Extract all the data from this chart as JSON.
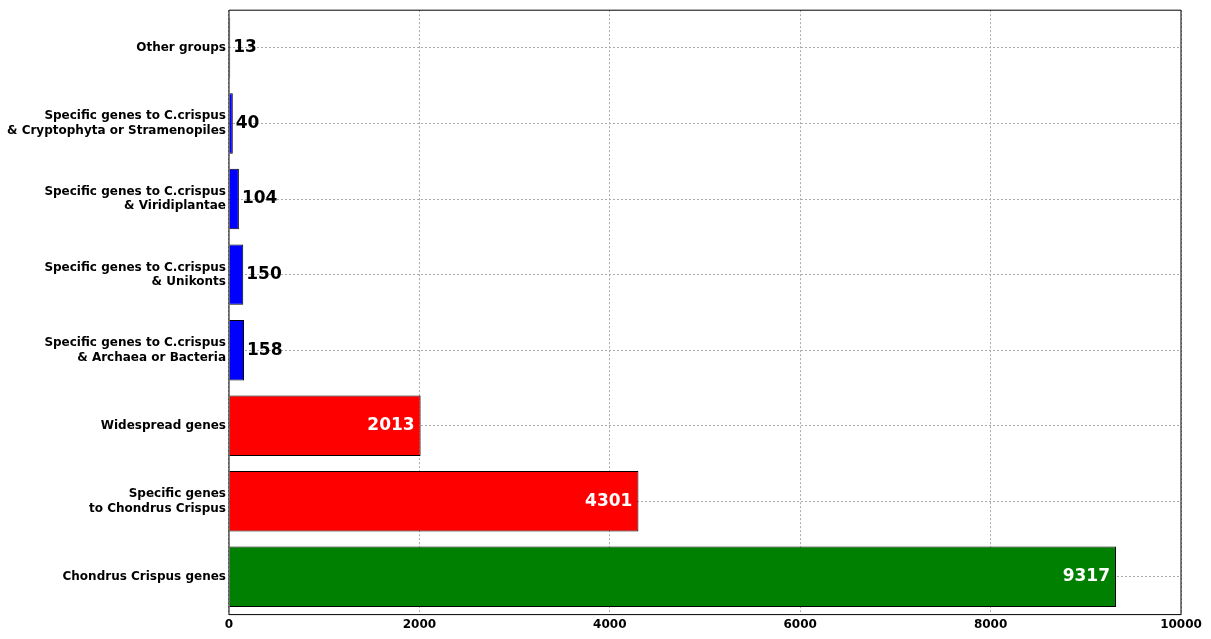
{
  "chart_data": {
    "type": "bar",
    "orientation": "horizontal",
    "categories": [
      "Other groups",
      "Specific genes to C.crispus\n& Cryptophyta or Stramenopiles",
      "Specific genes to C.crispus\n& Viridiplantae",
      "Specific genes to C.crispus\n& Unikonts",
      "Specific genes to C.crispus\n& Archaea or Bacteria",
      "Widespread genes",
      "Specific genes\nto Chondrus Crispus",
      "Chondrus Crispus genes"
    ],
    "values": [
      13,
      40,
      104,
      150,
      158,
      2013,
      4301,
      9317
    ],
    "colors": [
      "#8b4513",
      "#0000ff",
      "#0000ff",
      "#0000ff",
      "#0000ff",
      "#ff0000",
      "#ff0000",
      "#008000"
    ],
    "xlim": [
      0,
      10000
    ],
    "xticks": [
      0,
      2000,
      4000,
      6000,
      8000,
      10000
    ],
    "grid": true,
    "data_labels": true,
    "legend": false
  }
}
